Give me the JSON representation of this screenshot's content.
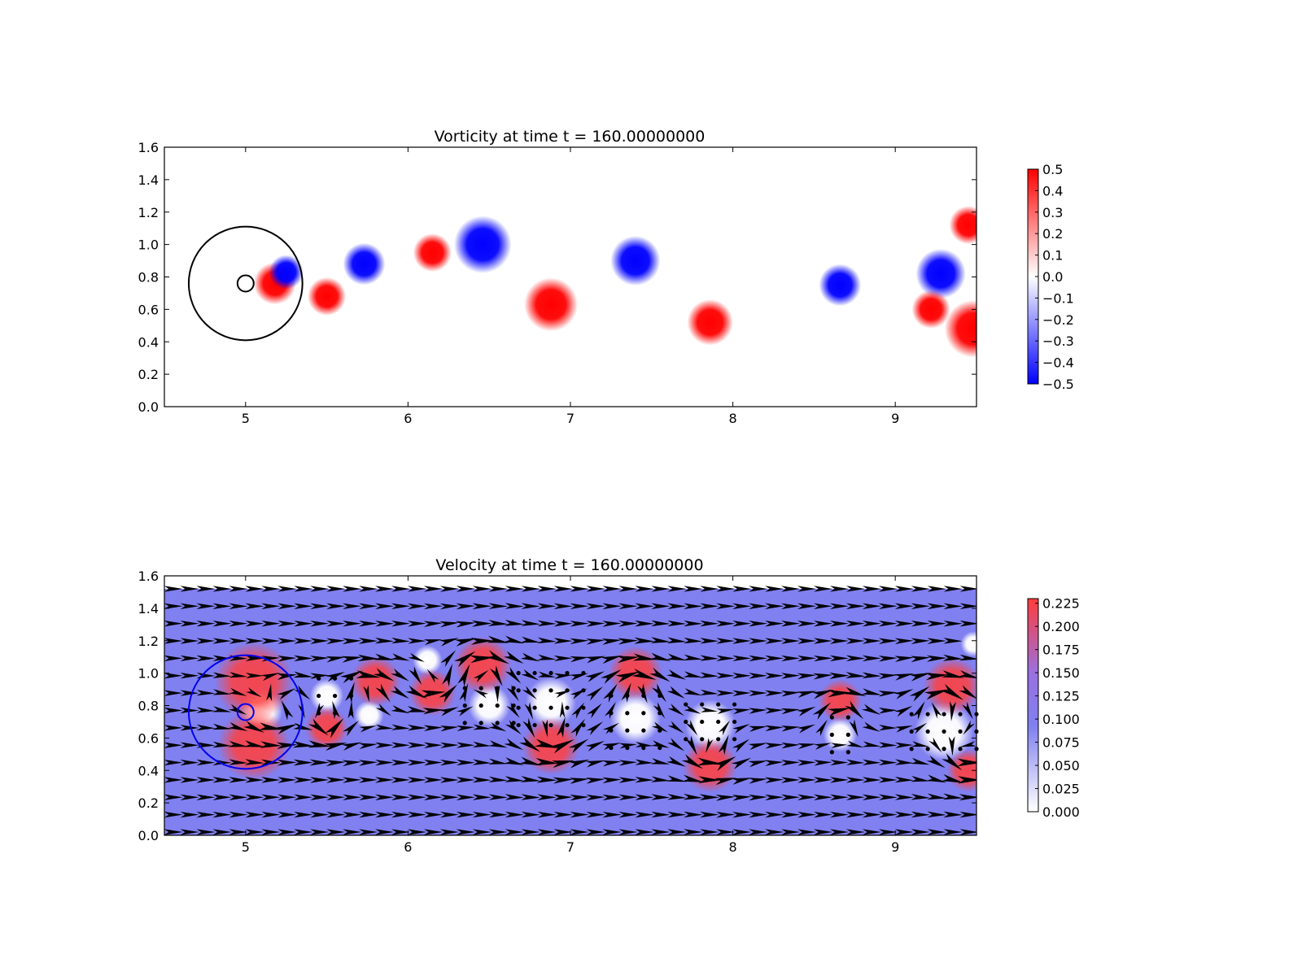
{
  "chart_data": [
    {
      "type": "heatmap",
      "title": "Vorticity at time t =   160.00000000",
      "xlabel": "",
      "ylabel": "",
      "xlim": [
        4.5,
        9.5
      ],
      "ylim": [
        0.0,
        1.6
      ],
      "xticks": [
        "5",
        "6",
        "7",
        "8",
        "9"
      ],
      "yticks": [
        "0.0",
        "0.2",
        "0.4",
        "0.6",
        "0.8",
        "1.0",
        "1.2",
        "1.4",
        "1.6"
      ],
      "colormap": "bwr",
      "colorbar": {
        "min": -0.5,
        "max": 0.5,
        "ticks": [
          "0.5",
          "0.4",
          "0.3",
          "0.2",
          "0.1",
          "0.0",
          "−0.1",
          "−0.2",
          "−0.3",
          "−0.4",
          "−0.5"
        ]
      },
      "colors": {
        "positive": "#ff0000",
        "negative": "#0000ff",
        "zero": "#ffffff",
        "circle": "#000000"
      },
      "circles": [
        {
          "cx": 5.0,
          "cy": 0.76,
          "r": 0.35
        },
        {
          "cx": 5.0,
          "cy": 0.76,
          "r": 0.05
        }
      ],
      "vortices": [
        {
          "x": 5.18,
          "y": 0.76,
          "r": 0.11,
          "value": 0.5
        },
        {
          "x": 5.25,
          "y": 0.83,
          "r": 0.09,
          "value": -0.5
        },
        {
          "x": 5.5,
          "y": 0.68,
          "r": 0.1,
          "value": 0.5
        },
        {
          "x": 5.73,
          "y": 0.88,
          "r": 0.11,
          "value": -0.5
        },
        {
          "x": 6.15,
          "y": 0.95,
          "r": 0.1,
          "value": 0.5
        },
        {
          "x": 6.46,
          "y": 1.0,
          "r": 0.15,
          "value": -0.5
        },
        {
          "x": 6.88,
          "y": 0.63,
          "r": 0.14,
          "value": 0.5
        },
        {
          "x": 7.4,
          "y": 0.9,
          "r": 0.13,
          "value": -0.5
        },
        {
          "x": 7.86,
          "y": 0.52,
          "r": 0.12,
          "value": 0.5
        },
        {
          "x": 8.66,
          "y": 0.75,
          "r": 0.11,
          "value": -0.5
        },
        {
          "x": 9.28,
          "y": 0.82,
          "r": 0.13,
          "value": -0.5
        },
        {
          "x": 9.48,
          "y": 0.48,
          "r": 0.15,
          "value": 0.5
        },
        {
          "x": 9.22,
          "y": 0.6,
          "r": 0.1,
          "value": 0.5
        },
        {
          "x": 9.45,
          "y": 1.12,
          "r": 0.1,
          "value": 0.5
        }
      ]
    },
    {
      "type": "heatmap",
      "title": "Velocity at time t =   160.00000000",
      "xlabel": "",
      "ylabel": "",
      "xlim": [
        4.5,
        9.5
      ],
      "ylim": [
        0.0,
        1.6
      ],
      "xticks": [
        "5",
        "6",
        "7",
        "8",
        "9"
      ],
      "yticks": [
        "0.0",
        "0.2",
        "0.4",
        "0.6",
        "0.8",
        "1.0",
        "1.2",
        "1.4",
        "1.6"
      ],
      "colormap": "bwr",
      "field_top": 1.52,
      "background_speed": 0.1,
      "colorbar": {
        "min": 0.0,
        "max": 0.23,
        "ticks": [
          "0.225",
          "0.200",
          "0.175",
          "0.150",
          "0.125",
          "0.100",
          "0.075",
          "0.050",
          "0.025",
          "0.000"
        ]
      },
      "colors": {
        "high": "#ff4040",
        "mid": "#8080f0",
        "low": "#ffffff",
        "circle": "#0000ee",
        "arrow": "#000000"
      },
      "circles": [
        {
          "cx": 5.0,
          "cy": 0.76,
          "r": 0.35
        },
        {
          "cx": 5.0,
          "cy": 0.76,
          "r": 0.05
        }
      ],
      "fast_regions": [
        {
          "x": 5.05,
          "y": 0.95,
          "r": 0.22,
          "speed": 0.22
        },
        {
          "x": 5.05,
          "y": 0.56,
          "r": 0.2,
          "speed": 0.22
        },
        {
          "x": 5.5,
          "y": 0.66,
          "r": 0.12,
          "speed": 0.22
        },
        {
          "x": 5.8,
          "y": 0.95,
          "r": 0.14,
          "speed": 0.2
        },
        {
          "x": 6.15,
          "y": 0.88,
          "r": 0.13,
          "speed": 0.2
        },
        {
          "x": 6.46,
          "y": 1.05,
          "r": 0.16,
          "speed": 0.22
        },
        {
          "x": 6.88,
          "y": 0.55,
          "r": 0.16,
          "speed": 0.22
        },
        {
          "x": 7.4,
          "y": 1.0,
          "r": 0.15,
          "speed": 0.2
        },
        {
          "x": 7.86,
          "y": 0.43,
          "r": 0.15,
          "speed": 0.22
        },
        {
          "x": 8.66,
          "y": 0.83,
          "r": 0.12,
          "speed": 0.2
        },
        {
          "x": 9.35,
          "y": 0.92,
          "r": 0.16,
          "speed": 0.22
        },
        {
          "x": 9.45,
          "y": 0.4,
          "r": 0.12,
          "speed": 0.22
        }
      ],
      "slow_regions": [
        {
          "x": 5.1,
          "y": 0.77,
          "r": 0.1
        },
        {
          "x": 5.5,
          "y": 0.86,
          "r": 0.08
        },
        {
          "x": 5.76,
          "y": 0.74,
          "r": 0.07
        },
        {
          "x": 6.12,
          "y": 1.08,
          "r": 0.07
        },
        {
          "x": 6.5,
          "y": 0.8,
          "r": 0.1
        },
        {
          "x": 6.88,
          "y": 0.82,
          "r": 0.12
        },
        {
          "x": 7.4,
          "y": 0.72,
          "r": 0.12
        },
        {
          "x": 7.86,
          "y": 0.68,
          "r": 0.12
        },
        {
          "x": 8.66,
          "y": 0.62,
          "r": 0.08
        },
        {
          "x": 9.3,
          "y": 0.64,
          "r": 0.14
        },
        {
          "x": 9.48,
          "y": 1.18,
          "r": 0.06
        }
      ],
      "stagnation_dots": [
        {
          "x": 5.55,
          "y": 0.86,
          "cols": 3,
          "rows": 3
        },
        {
          "x": 6.5,
          "y": 0.8,
          "cols": 4,
          "rows": 3
        },
        {
          "x": 6.88,
          "y": 0.84,
          "cols": 5,
          "rows": 4
        },
        {
          "x": 7.4,
          "y": 0.7,
          "cols": 4,
          "rows": 4
        },
        {
          "x": 7.86,
          "y": 0.7,
          "cols": 4,
          "rows": 3
        },
        {
          "x": 8.66,
          "y": 0.62,
          "cols": 2,
          "rows": 3
        },
        {
          "x": 9.3,
          "y": 0.64,
          "cols": 5,
          "rows": 3
        }
      ],
      "vortices": [
        {
          "x": 5.18,
          "y": 0.76,
          "strength": 1,
          "r": 0.18
        },
        {
          "x": 5.25,
          "y": 0.85,
          "strength": -1,
          "r": 0.14
        },
        {
          "x": 5.5,
          "y": 0.68,
          "strength": 1,
          "r": 0.14
        },
        {
          "x": 5.73,
          "y": 0.9,
          "strength": -1,
          "r": 0.15
        },
        {
          "x": 6.15,
          "y": 0.95,
          "strength": 1,
          "r": 0.14
        },
        {
          "x": 6.46,
          "y": 1.0,
          "strength": -1,
          "r": 0.2
        },
        {
          "x": 6.88,
          "y": 0.63,
          "strength": 1,
          "r": 0.2
        },
        {
          "x": 7.4,
          "y": 0.9,
          "strength": -1,
          "r": 0.2
        },
        {
          "x": 7.86,
          "y": 0.52,
          "strength": 1,
          "r": 0.17
        },
        {
          "x": 8.66,
          "y": 0.75,
          "strength": -1,
          "r": 0.15
        },
        {
          "x": 9.28,
          "y": 0.82,
          "strength": -1,
          "r": 0.18
        },
        {
          "x": 9.45,
          "y": 0.5,
          "strength": 1,
          "r": 0.18
        }
      ]
    }
  ]
}
